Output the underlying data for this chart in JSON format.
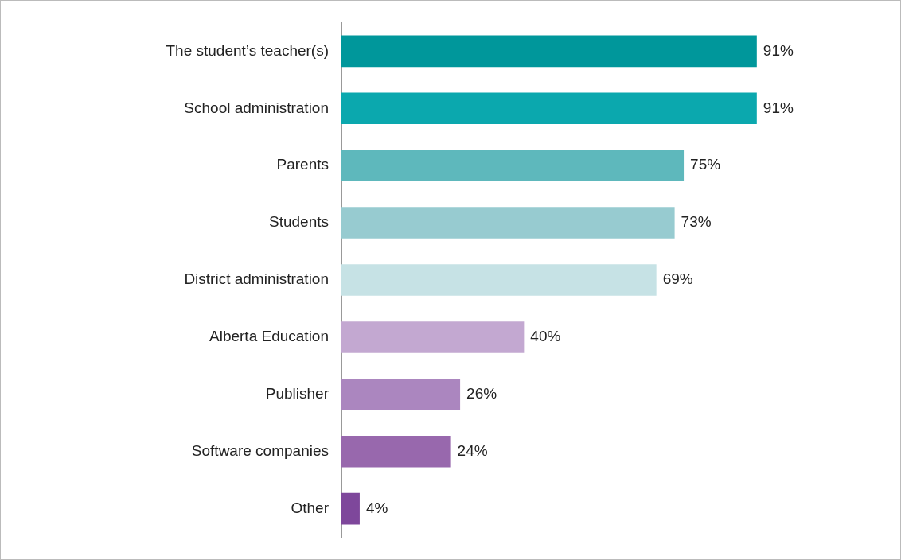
{
  "chart_data": {
    "type": "bar",
    "orientation": "horizontal",
    "categories": [
      "The student’s teacher(s)",
      "School administration",
      "Parents",
      "Students",
      "District administration",
      "Alberta Education",
      "Publisher",
      "Software companies",
      "Other"
    ],
    "values": [
      91,
      91,
      75,
      73,
      69,
      40,
      26,
      24,
      4
    ],
    "value_labels": [
      "91%",
      "91%",
      "75%",
      "73%",
      "69%",
      "40%",
      "26%",
      "24%",
      "4%"
    ],
    "colors": [
      "#00979b",
      "#0ba8ae",
      "#5eb8bc",
      "#97cbd0",
      "#c6e2e5",
      "#c3a8d1",
      "#ab86bf",
      "#9868ad",
      "#7e479b"
    ],
    "legend": false,
    "tick_labels": "y"
  }
}
